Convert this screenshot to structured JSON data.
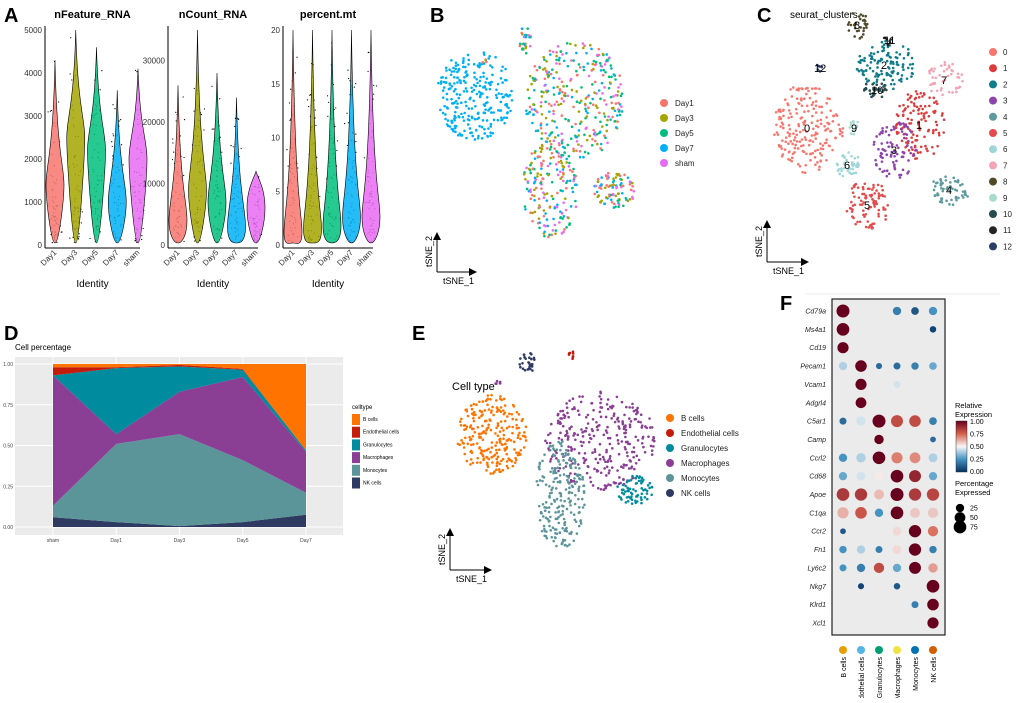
{
  "panels": {
    "a": "A",
    "b": "B",
    "c": "C",
    "d": "D",
    "e": "E",
    "f": "F"
  },
  "groups": [
    "Day1",
    "Day3",
    "Day5",
    "Day7",
    "sham"
  ],
  "group_colors": [
    "#F8766D",
    "#A3A500",
    "#00BF7D",
    "#00B0F6",
    "#E76BF3"
  ],
  "chart_data": [
    {
      "type": "violin",
      "panel": "A",
      "xlabel": "Identity",
      "categories": [
        "Day1",
        "Day3",
        "Day5",
        "Day7",
        "sham"
      ],
      "plots": [
        {
          "title": "nFeature_RNA",
          "ylim": [
            0,
            5000
          ],
          "yticks": [
            "0",
            "1000",
            "2000",
            "3000",
            "4000",
            "5000"
          ],
          "yvals": [
            0,
            1000,
            2000,
            3000,
            4000,
            5000
          ],
          "medians": [
            1400,
            2500,
            2200,
            1000,
            2000
          ],
          "max": [
            4300,
            5000,
            4600,
            3600,
            4100
          ]
        },
        {
          "title": "nCount_RNA",
          "ylim": [
            0,
            35000
          ],
          "yticks": [
            "0",
            "10000",
            "20000",
            "30000"
          ],
          "yvals": [
            0,
            10000,
            20000,
            30000
          ],
          "medians": [
            4000,
            9000,
            7000,
            3000,
            6000
          ],
          "max": [
            26000,
            35000,
            28000,
            24000,
            12000
          ]
        },
        {
          "title": "percent.mt",
          "ylim": [
            0,
            20
          ],
          "yticks": [
            "0",
            "5",
            "10",
            "15",
            "20"
          ],
          "yvals": [
            0,
            5,
            10,
            15,
            20
          ],
          "medians": [
            1.2,
            1.5,
            1.8,
            2.6,
            2.6
          ],
          "max": [
            20,
            20,
            20,
            20,
            20
          ]
        }
      ]
    },
    {
      "type": "scatter",
      "panel": "B",
      "xlabel": "tSNE_1",
      "ylabel": "tSNE_2",
      "legend": [
        "Day1",
        "Day3",
        "Day5",
        "Day7",
        "sham"
      ],
      "legend_position": "right"
    },
    {
      "type": "scatter",
      "panel": "C",
      "title": "seurat_clusters",
      "xlabel": "tSNE_1",
      "ylabel": "tSNE_2",
      "clusters": [
        "0",
        "1",
        "2",
        "3",
        "4",
        "5",
        "6",
        "7",
        "8",
        "9",
        "10",
        "11",
        "12"
      ],
      "colors": [
        "#F8766D",
        "#DE3C3C",
        "#0E7C8B",
        "#8E44AD",
        "#5E9A9E",
        "#E64B4B",
        "#9FD6DA",
        "#F4A3B4",
        "#4E4A2A",
        "#A9DCCF",
        "#264B50",
        "#232323",
        "#2C3E66"
      ],
      "legend_position": "right"
    },
    {
      "type": "area",
      "panel": "D",
      "title": "Cell percentage",
      "categories": [
        "sham",
        "Day1",
        "Day3",
        "Day5",
        "Day7"
      ],
      "yticks": [
        "0.00",
        "0.25",
        "0.50",
        "0.75",
        "1.00"
      ],
      "ylim": [
        0,
        1
      ],
      "grid": true,
      "legend_title": "celltype",
      "legend_position": "right",
      "series": [
        {
          "name": "B cells",
          "color": "#FF7300",
          "values": [
            0.02,
            0.02,
            0.005,
            0.03,
            0.53
          ]
        },
        {
          "name": "Endothelial cells",
          "color": "#C51B0B",
          "values": [
            0.05,
            0.005,
            0.01,
            0.005,
            0.0
          ]
        },
        {
          "name": "Granulocytes",
          "color": "#008C9E",
          "values": [
            0.0,
            0.405,
            0.155,
            0.045,
            0.01
          ]
        },
        {
          "name": "Macrophages",
          "color": "#8A3F95",
          "values": [
            0.8,
            0.06,
            0.26,
            0.51,
            0.25
          ]
        },
        {
          "name": "Monocytes",
          "color": "#5C9599",
          "values": [
            0.07,
            0.48,
            0.565,
            0.38,
            0.135
          ]
        },
        {
          "name": "NK cells",
          "color": "#2E3A62",
          "values": [
            0.06,
            0.03,
            0.005,
            0.03,
            0.075
          ]
        }
      ]
    },
    {
      "type": "scatter",
      "panel": "E",
      "title": "Cell type",
      "xlabel": "tSNE_1",
      "ylabel": "tSNE_2",
      "legend": [
        "B cells",
        "Endothelial cells",
        "Granulocytes",
        "Macrophages",
        "Monocytes",
        "NK cells"
      ],
      "colors": [
        "#FF7300",
        "#C51B0B",
        "#008C9E",
        "#8A3F95",
        "#5C9599",
        "#2E3A62"
      ],
      "legend_position": "right"
    },
    {
      "type": "dotplot",
      "panel": "F",
      "color_legend_title": "Relative Expression",
      "color_ticks": [
        "1.00",
        "0.75",
        "0.50",
        "0.25",
        "0.00"
      ],
      "size_legend_title": "Percentage Expressed",
      "size_ticks": [
        "25",
        "50",
        "75"
      ],
      "cell_types": [
        "B cells",
        "Endothelial cells",
        "Granulocytes",
        "Macrophages",
        "Monocytes",
        "NK cells"
      ],
      "cell_type_colors": [
        "#E69F00",
        "#56B4E9",
        "#009E73",
        "#F0E442",
        "#0072B2",
        "#D55E00"
      ],
      "genes": [
        "Cd79a",
        "Ms4a1",
        "Cd19",
        "Pecam1",
        "Vcam1",
        "Adgrl4",
        "C5ar1",
        "Camp",
        "Ccrl2",
        "Cd68",
        "Apoe",
        "C1qa",
        "Ccr2",
        "Fn1",
        "Ly6c2",
        "Nkg7",
        "Klrd1",
        "Xcl1"
      ],
      "values": [
        [
          [
            1,
            80
          ],
          null,
          null,
          [
            0.2,
            25
          ],
          [
            0.1,
            20
          ],
          [
            0.25,
            25
          ]
        ],
        [
          [
            1,
            75
          ],
          null,
          null,
          null,
          null,
          [
            0.05,
            12
          ]
        ],
        [
          [
            1,
            55
          ],
          null,
          null,
          null,
          null,
          null
        ],
        [
          [
            0.4,
            25
          ],
          [
            1,
            60
          ],
          [
            0.15,
            10
          ],
          [
            0.15,
            15
          ],
          [
            0.2,
            18
          ],
          [
            0.3,
            20
          ]
        ],
        [
          null,
          [
            1,
            55
          ],
          null,
          [
            0.45,
            15
          ],
          null,
          null
        ],
        [
          null,
          [
            1,
            50
          ],
          null,
          null,
          null,
          null
        ],
        [
          [
            0.15,
            15
          ],
          [
            0.45,
            35
          ],
          [
            1,
            80
          ],
          [
            0.8,
            65
          ],
          [
            0.8,
            60
          ],
          [
            0.2,
            20
          ]
        ],
        [
          null,
          null,
          [
            1,
            35
          ],
          null,
          null,
          [
            0.15,
            8
          ]
        ],
        [
          [
            0.25,
            25
          ],
          [
            0.4,
            35
          ],
          [
            1,
            75
          ],
          [
            0.7,
            55
          ],
          [
            0.68,
            50
          ],
          [
            0.4,
            30
          ]
        ],
        [
          [
            0.3,
            25
          ],
          [
            0.45,
            30
          ],
          [
            0.52,
            30
          ],
          [
            1,
            75
          ],
          [
            0.9,
            65
          ],
          [
            0.3,
            25
          ]
        ],
        [
          [
            0.85,
            75
          ],
          [
            0.85,
            70
          ],
          [
            0.6,
            40
          ],
          [
            1,
            80
          ],
          [
            0.85,
            70
          ],
          [
            0.82,
            70
          ]
        ],
        [
          [
            0.62,
            55
          ],
          [
            0.78,
            60
          ],
          [
            0.25,
            25
          ],
          [
            1,
            75
          ],
          [
            0.58,
            40
          ],
          [
            0.58,
            45
          ]
        ],
        [
          [
            0.1,
            8
          ],
          null,
          null,
          [
            0.55,
            30
          ],
          [
            1,
            70
          ],
          [
            0.72,
            45
          ]
        ],
        [
          [
            0.25,
            18
          ],
          [
            0.4,
            25
          ],
          [
            0.2,
            15
          ],
          [
            0.55,
            30
          ],
          [
            1,
            70
          ],
          [
            0.2,
            18
          ]
        ],
        [
          [
            0.25,
            15
          ],
          [
            0.2,
            25
          ],
          [
            0.8,
            45
          ],
          [
            0.3,
            25
          ],
          [
            1,
            65
          ],
          [
            0.65,
            35
          ]
        ],
        [
          null,
          [
            0.05,
            10
          ],
          null,
          [
            0.1,
            12
          ],
          null,
          [
            1,
            75
          ]
        ],
        [
          null,
          null,
          null,
          null,
          [
            0.2,
            15
          ],
          [
            1,
            60
          ]
        ],
        [
          null,
          null,
          null,
          null,
          null,
          [
            1,
            55
          ]
        ]
      ]
    }
  ]
}
